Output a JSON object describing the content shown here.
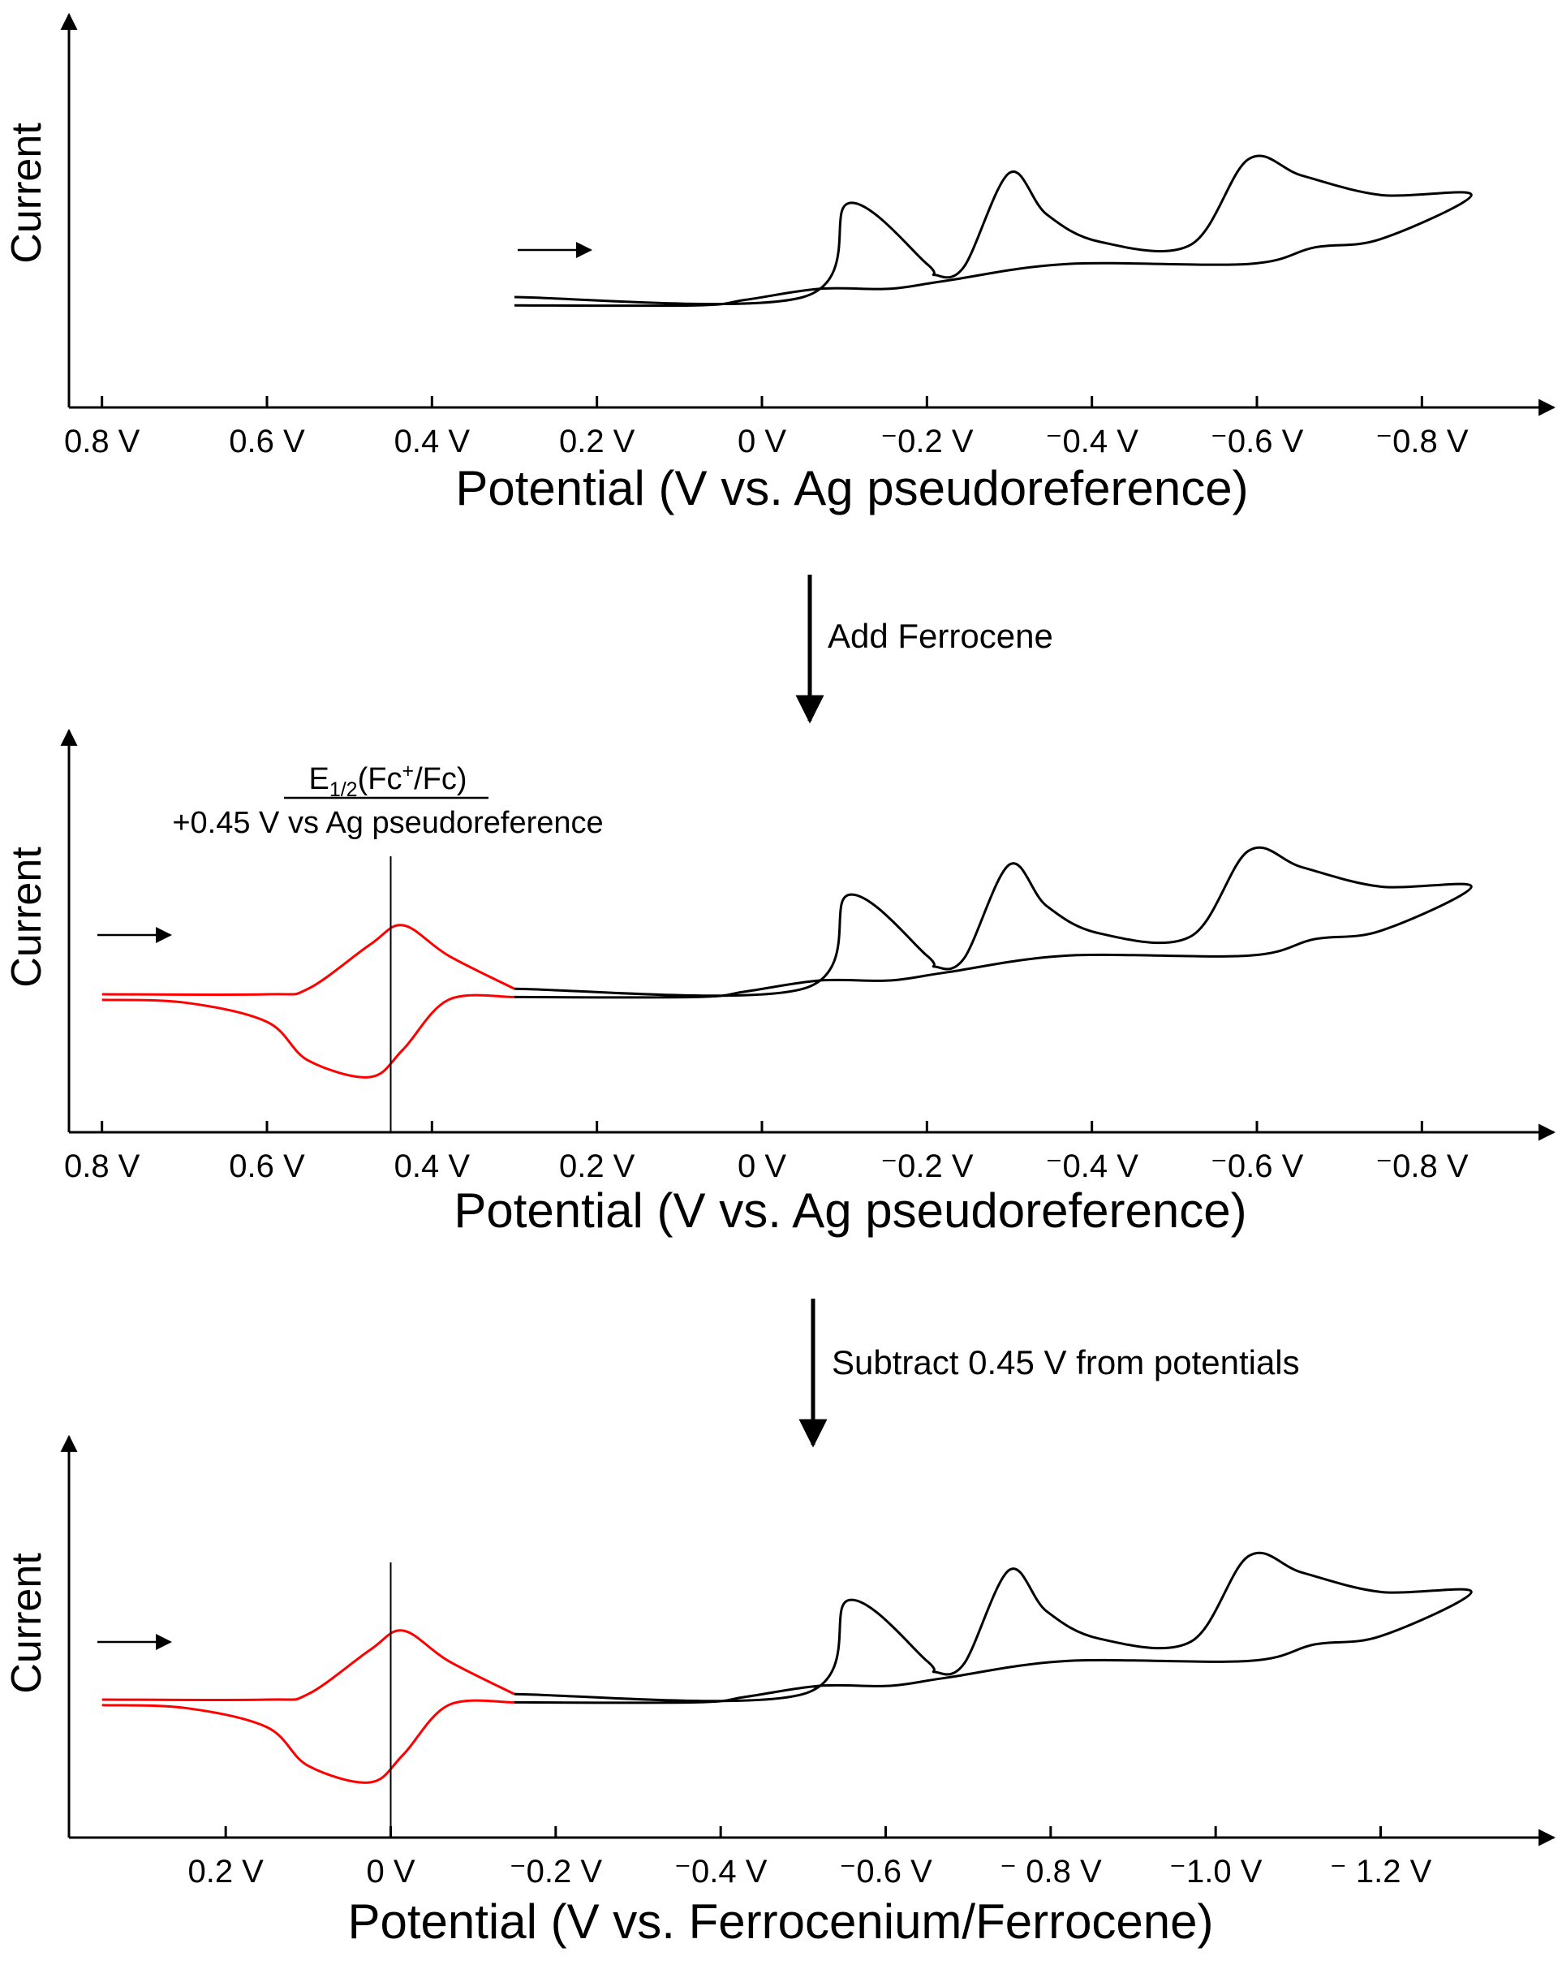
{
  "chart_data": [
    {
      "type": "line",
      "ylabel": "Current",
      "xlabel": "Potential (V vs. Ag pseudoreference)",
      "x_ticks": [
        {
          "value": 0.8,
          "label": "0.8 V"
        },
        {
          "value": 0.6,
          "label": "0.6 V"
        },
        {
          "value": 0.4,
          "label": "0.4 V"
        },
        {
          "value": 0.2,
          "label": "0.2 V"
        },
        {
          "value": 0.0,
          "label": "0 V"
        },
        {
          "value": -0.2,
          "label": "⁻0.2 V"
        },
        {
          "value": -0.4,
          "label": "⁻0.4 V"
        },
        {
          "value": -0.6,
          "label": "⁻0.6 V"
        },
        {
          "value": -0.8,
          "label": "⁻0.8 V"
        }
      ],
      "xlim": [
        0.84,
        -0.96
      ],
      "scan_arrow": {
        "direction": "negative"
      },
      "series": [
        {
          "color": "#000000",
          "points": [
            [
              0.3,
              4.0
            ],
            [
              -0.05,
              4.0
            ],
            [
              -0.105,
              7.4
            ],
            [
              -0.2,
              5.2
            ],
            [
              -0.21,
              4.8
            ],
            [
              -0.245,
              5.1
            ],
            [
              -0.3,
              8.5
            ],
            [
              -0.345,
              7.0
            ],
            [
              -0.41,
              6.0
            ],
            [
              -0.52,
              5.9
            ],
            [
              -0.59,
              9.0
            ],
            [
              -0.655,
              8.4
            ],
            [
              -0.75,
              7.7
            ],
            [
              -0.86,
              7.7
            ],
            [
              -0.75,
              6.1
            ],
            [
              -0.67,
              5.8
            ],
            [
              -0.59,
              5.2
            ],
            [
              -0.37,
              5.2
            ],
            [
              -0.225,
              4.6
            ],
            [
              -0.155,
              4.3
            ],
            [
              -0.07,
              4.3
            ],
            [
              0.02,
              3.9
            ],
            [
              0.08,
              3.7
            ],
            [
              0.3,
              3.7
            ]
          ]
        }
      ]
    },
    {
      "type": "line",
      "ylabel": "Current",
      "xlabel": "Potential (V vs. Ag pseudoreference)",
      "annotation": {
        "lines": [
          [
            "E",
            "1/2",
            "(Fc",
            "+",
            "/Fc)"
          ],
          [
            "+0.45 V vs Ag pseudoreference"
          ]
        ],
        "marker_x": 0.45
      },
      "x_ticks": [
        {
          "value": 0.8,
          "label": "0.8 V"
        },
        {
          "value": 0.6,
          "label": "0.6 V"
        },
        {
          "value": 0.4,
          "label": "0.4 V"
        },
        {
          "value": 0.2,
          "label": "0.2 V"
        },
        {
          "value": 0.0,
          "label": "0 V"
        },
        {
          "value": -0.2,
          "label": "⁻0.2 V"
        },
        {
          "value": -0.4,
          "label": "⁻0.4 V"
        },
        {
          "value": -0.6,
          "label": "⁻0.6 V"
        },
        {
          "value": -0.8,
          "label": "⁻0.8 V"
        }
      ],
      "xlim": [
        0.84,
        -0.96
      ],
      "scan_arrow": {
        "direction": "negative"
      },
      "series": [
        {
          "color": "#ff0000",
          "points": [
            [
              0.8,
              5.0
            ],
            [
              0.6,
              5.0
            ],
            [
              0.55,
              5.2
            ],
            [
              0.475,
              6.8
            ],
            [
              0.435,
              7.5
            ],
            [
              0.38,
              6.4
            ],
            [
              0.3,
              5.2
            ]
          ]
        },
        {
          "color": "#ff0000",
          "points": [
            [
              0.3,
              4.9
            ],
            [
              0.38,
              4.8
            ],
            [
              0.435,
              3.0
            ],
            [
              0.475,
              2.0
            ],
            [
              0.55,
              2.6
            ],
            [
              0.6,
              4.0
            ],
            [
              0.7,
              4.7
            ],
            [
              0.8,
              4.8
            ]
          ]
        },
        {
          "color": "#000000",
          "points": [
            [
              0.3,
              5.2
            ],
            [
              -0.05,
              5.2
            ],
            [
              -0.105,
              8.6
            ],
            [
              -0.2,
              6.4
            ],
            [
              -0.21,
              6.0
            ],
            [
              -0.245,
              6.3
            ],
            [
              -0.3,
              9.7
            ],
            [
              -0.345,
              8.2
            ],
            [
              -0.41,
              7.2
            ],
            [
              -0.52,
              7.1
            ],
            [
              -0.59,
              10.2
            ],
            [
              -0.655,
              9.6
            ],
            [
              -0.75,
              8.9
            ],
            [
              -0.86,
              8.9
            ],
            [
              -0.75,
              7.3
            ],
            [
              -0.67,
              7.0
            ],
            [
              -0.59,
              6.4
            ],
            [
              -0.37,
              6.4
            ],
            [
              -0.225,
              5.8
            ],
            [
              -0.155,
              5.5
            ],
            [
              -0.07,
              5.5
            ],
            [
              0.02,
              5.1
            ],
            [
              0.08,
              4.9
            ],
            [
              0.3,
              4.9
            ]
          ]
        }
      ]
    },
    {
      "type": "line",
      "ylabel": "Current",
      "xlabel": "Potential (V vs. Ferrocenium/Ferrocene)",
      "annotation": {
        "marker_x": 0.0
      },
      "x_ticks": [
        {
          "value": 0.2,
          "label": "0.2 V"
        },
        {
          "value": 0.0,
          "label": "0 V"
        },
        {
          "value": -0.2,
          "label": "⁻0.2 V"
        },
        {
          "value": -0.4,
          "label": "⁻0.4 V"
        },
        {
          "value": -0.6,
          "label": "⁻0.6 V"
        },
        {
          "value": -0.8,
          "label": "⁻ 0.8 V"
        },
        {
          "value": -1.0,
          "label": "⁻1.0 V"
        },
        {
          "value": -1.2,
          "label": "⁻ 1.2 V"
        }
      ],
      "xlim": [
        0.39,
        -1.41
      ],
      "scan_arrow": {
        "direction": "negative"
      },
      "series": [
        {
          "color": "#ff0000",
          "points": [
            [
              0.35,
              5.0
            ],
            [
              0.15,
              5.0
            ],
            [
              0.1,
              5.2
            ],
            [
              0.025,
              6.8
            ],
            [
              -0.015,
              7.5
            ],
            [
              -0.07,
              6.4
            ],
            [
              -0.15,
              5.2
            ]
          ]
        },
        {
          "color": "#ff0000",
          "points": [
            [
              -0.15,
              4.9
            ],
            [
              -0.07,
              4.8
            ],
            [
              -0.015,
              3.0
            ],
            [
              0.025,
              2.0
            ],
            [
              0.1,
              2.6
            ],
            [
              0.15,
              4.0
            ],
            [
              0.25,
              4.7
            ],
            [
              0.35,
              4.8
            ]
          ]
        },
        {
          "color": "#000000",
          "points": [
            [
              -0.15,
              5.2
            ],
            [
              -0.5,
              5.2
            ],
            [
              -0.555,
              8.6
            ],
            [
              -0.65,
              6.4
            ],
            [
              -0.66,
              6.0
            ],
            [
              -0.695,
              6.3
            ],
            [
              -0.75,
              9.7
            ],
            [
              -0.795,
              8.2
            ],
            [
              -0.86,
              7.2
            ],
            [
              -0.97,
              7.1
            ],
            [
              -1.04,
              10.2
            ],
            [
              -1.105,
              9.6
            ],
            [
              -1.2,
              8.9
            ],
            [
              -1.31,
              8.9
            ],
            [
              -1.2,
              7.3
            ],
            [
              -1.12,
              7.0
            ],
            [
              -1.04,
              6.4
            ],
            [
              -0.82,
              6.4
            ],
            [
              -0.675,
              5.8
            ],
            [
              -0.605,
              5.5
            ],
            [
              -0.52,
              5.5
            ],
            [
              -0.43,
              5.1
            ],
            [
              -0.37,
              4.9
            ],
            [
              -0.15,
              4.9
            ]
          ]
        }
      ]
    }
  ],
  "steps": [
    {
      "label": "Add Ferrocene"
    },
    {
      "label": "Subtract 0.45 V from potentials"
    }
  ]
}
